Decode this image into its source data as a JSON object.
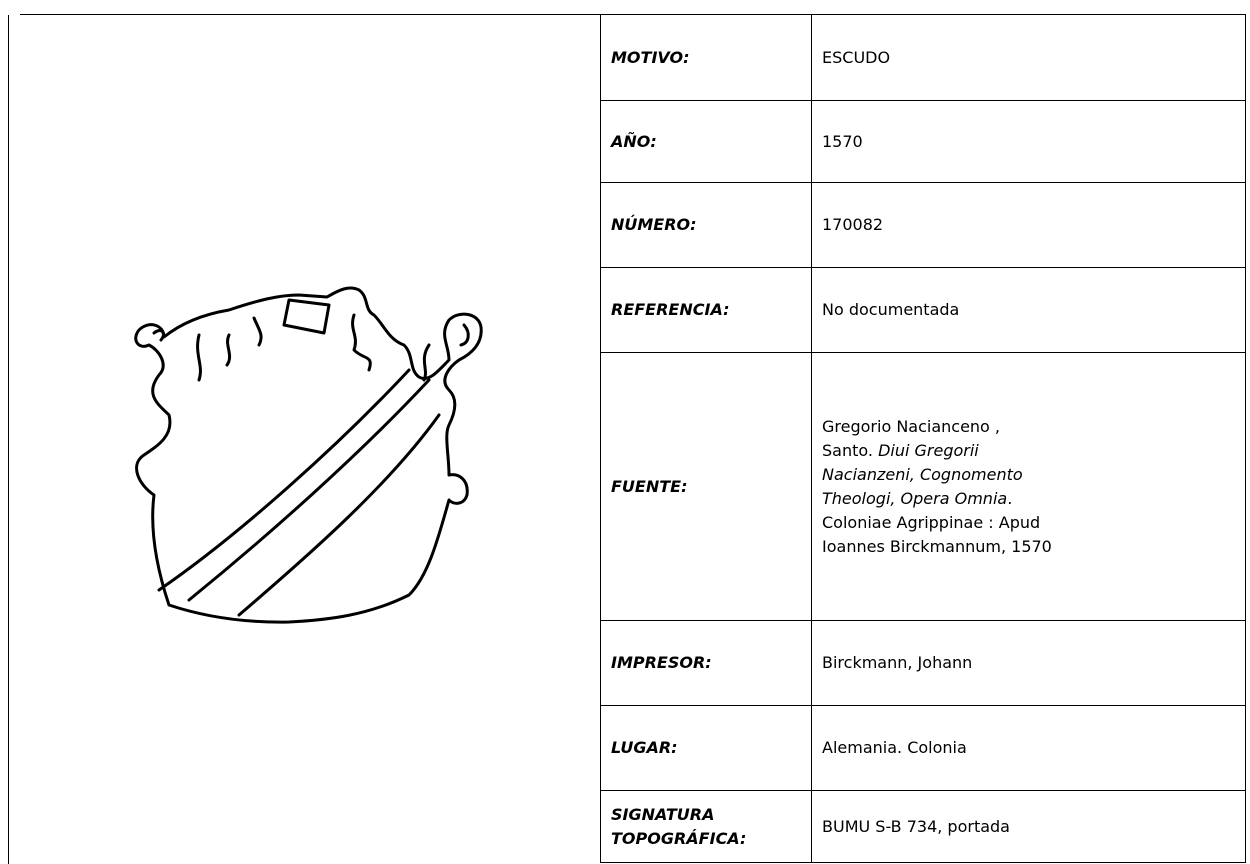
{
  "table": {
    "rows": [
      {
        "label": "MOTIVO:",
        "value": "ESCUDO"
      },
      {
        "label": "AÑO:",
        "value": "1570"
      },
      {
        "label": "NÚMERO:",
        "value": "170082"
      },
      {
        "label": "REFERENCIA:",
        "value": "No documentada"
      },
      {
        "label": "FUENTE:",
        "value": [
          "Gregorio Nacianceno , Santo. ",
          "Diui Gregorii Nacianzeni, Cognomento Theologi, Opera Omnia",
          ". Coloniae Agrippinae : Apud Ioannes Birckmannum, 1570"
        ]
      },
      {
        "label": "IMPRESOR:",
        "value": "Birckmann, Johann"
      },
      {
        "label": "LUGAR:",
        "value": "Alemania. Colonia"
      },
      {
        "label": "SIGNATURA TOPOGRÁFICA:",
        "value": "BUMU S-B 734, portada"
      }
    ]
  }
}
